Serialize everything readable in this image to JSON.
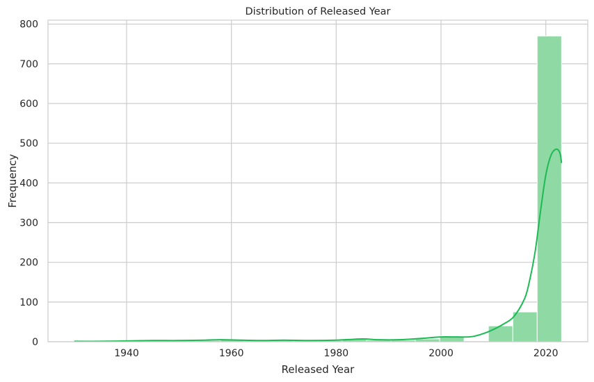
{
  "chart_data": {
    "type": "bar",
    "title": "Distribution of Released Year",
    "xlabel": "Released Year",
    "ylabel": "Frequency",
    "xlim": [
      1925,
      2028
    ],
    "ylim": [
      0,
      810
    ],
    "xticks": [
      1940,
      1960,
      1980,
      2000,
      2020
    ],
    "yticks": [
      0,
      100,
      200,
      300,
      400,
      500,
      600,
      700,
      800
    ],
    "grid": true,
    "bar_color": "#8ed9a4",
    "kde_color": "#1db954",
    "bins": [
      {
        "x0": 1930.0,
        "x1": 1934.65,
        "value": 2
      },
      {
        "x0": 1934.65,
        "x1": 1939.3,
        "value": 1
      },
      {
        "x0": 1939.3,
        "x1": 1943.95,
        "value": 2
      },
      {
        "x0": 1943.95,
        "x1": 1948.6,
        "value": 3
      },
      {
        "x0": 1948.6,
        "x1": 1953.25,
        "value": 3
      },
      {
        "x0": 1953.25,
        "x1": 1957.9,
        "value": 3
      },
      {
        "x0": 1957.9,
        "x1": 1962.55,
        "value": 5
      },
      {
        "x0": 1962.55,
        "x1": 1967.2,
        "value": 3
      },
      {
        "x0": 1967.2,
        "x1": 1971.85,
        "value": 4
      },
      {
        "x0": 1971.85,
        "x1": 1976.5,
        "value": 4
      },
      {
        "x0": 1976.5,
        "x1": 1981.15,
        "value": 3
      },
      {
        "x0": 1981.15,
        "x1": 1985.8,
        "value": 6
      },
      {
        "x0": 1985.8,
        "x1": 1990.45,
        "value": 4
      },
      {
        "x0": 1990.45,
        "x1": 1995.1,
        "value": 4
      },
      {
        "x0": 1995.1,
        "x1": 1999.75,
        "value": 7
      },
      {
        "x0": 1999.75,
        "x1": 2004.4,
        "value": 14
      },
      {
        "x0": 2004.4,
        "x1": 2009.05,
        "value": 2
      },
      {
        "x0": 2009.05,
        "x1": 2013.7,
        "value": 40
      },
      {
        "x0": 2013.7,
        "x1": 2018.35,
        "value": 75
      },
      {
        "x0": 2018.35,
        "x1": 2023.0,
        "value": 770
      }
    ],
    "kde": {
      "x": [
        1930,
        1935,
        1940,
        1945,
        1950,
        1955,
        1958,
        1962,
        1966,
        1970,
        1975,
        1980,
        1985,
        1988,
        1992,
        1996,
        2000,
        2003,
        2006,
        2009,
        2012,
        2014,
        2016,
        2017,
        2018,
        2019,
        2020,
        2021,
        2022,
        2022.7,
        2023
      ],
      "y": [
        1,
        1,
        2,
        3,
        3,
        4,
        5,
        4,
        3,
        4,
        3,
        4,
        7,
        5,
        5,
        8,
        12,
        12,
        13,
        25,
        45,
        65,
        110,
        160,
        230,
        330,
        420,
        470,
        485,
        475,
        450
      ]
    }
  }
}
